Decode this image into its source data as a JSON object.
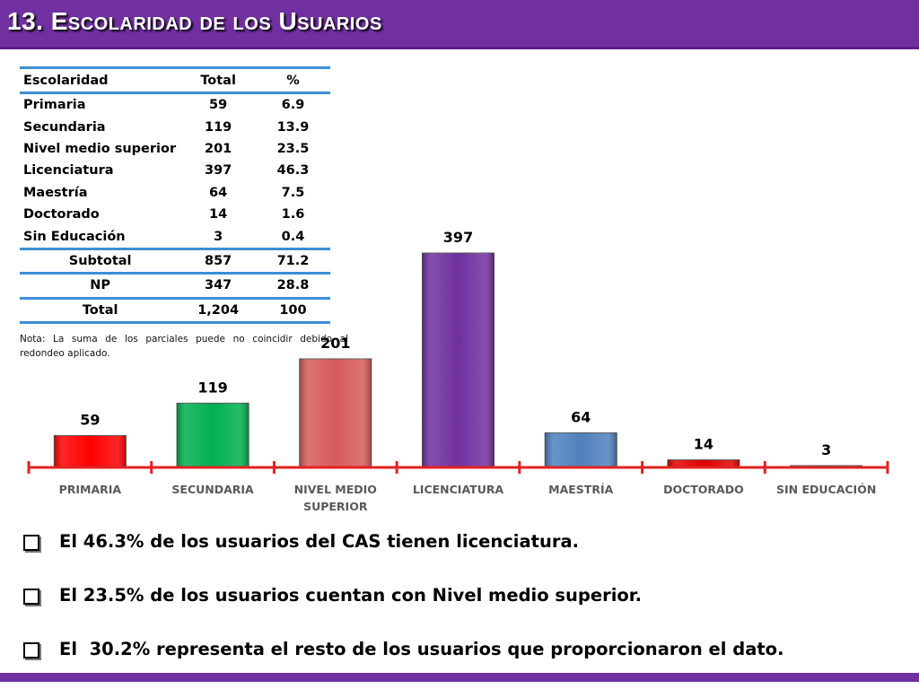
{
  "title": "13. Escolaridad de los Usuarios",
  "table": {
    "headers": [
      "Escolaridad",
      "Total",
      "%"
    ],
    "rows": [
      {
        "cat": "Primaria",
        "total": "59",
        "pct": "6.9"
      },
      {
        "cat": "Secundaria",
        "total": "119",
        "pct": "13.9"
      },
      {
        "cat": "Nivel medio superior",
        "total": "201",
        "pct": "23.5"
      },
      {
        "cat": "Licenciatura",
        "total": "397",
        "pct": "46.3"
      },
      {
        "cat": "Maestría",
        "total": "64",
        "pct": "7.5"
      },
      {
        "cat": "Doctorado",
        "total": "14",
        "pct": "1.6"
      },
      {
        "cat": "Sin Educación",
        "total": "3",
        "pct": "0.4"
      }
    ],
    "subtotal": {
      "label": "Subtotal",
      "total": "857",
      "pct": "71.2"
    },
    "np": {
      "label": "NP",
      "total": "347",
      "pct": "28.8"
    },
    "total": {
      "label": "Total",
      "total": "1,204",
      "pct": "100"
    }
  },
  "note": "Nota: La suma de los parciales puede no coincidir debido al redondeo aplicado.",
  "chart_data": {
    "type": "bar",
    "categories": [
      "PRIMARIA",
      "SECUNDARIA",
      "NIVEL MEDIO SUPERIOR",
      "LICENCIATURA",
      "MAESTRÍA",
      "DOCTORADO",
      "SIN EDUCACIÓN"
    ],
    "category_lines": [
      [
        "PRIMARIA"
      ],
      [
        "SECUNDARIA"
      ],
      [
        "NIVEL MEDIO",
        "SUPERIOR"
      ],
      [
        "LICENCIATURA"
      ],
      [
        "MAESTRÍA"
      ],
      [
        "DOCTORADO"
      ],
      [
        "SIN EDUCACIÓN"
      ]
    ],
    "values": [
      59,
      119,
      201,
      397,
      64,
      14,
      3
    ],
    "colors": [
      "#ff0000",
      "#00b050",
      "#d65b5b",
      "#7030a0",
      "#4f81bd",
      "#e00000",
      "#c00000"
    ],
    "axis_color": "#e32222",
    "ylim": [
      0,
      397
    ],
    "data_labels": true,
    "grid": false,
    "title": "",
    "xlabel": "",
    "ylabel": ""
  },
  "bullets": [
    "El 46.3% de los usuarios del CAS tienen licenciatura.",
    "El 23.5% de los usuarios cuentan con Nivel medio superior.",
    "El  30.2% representa el resto de los usuarios que proporcionaron el dato."
  ],
  "colors": {
    "title_bar": "#7030a0",
    "table_rule": "#3b8fd5"
  }
}
